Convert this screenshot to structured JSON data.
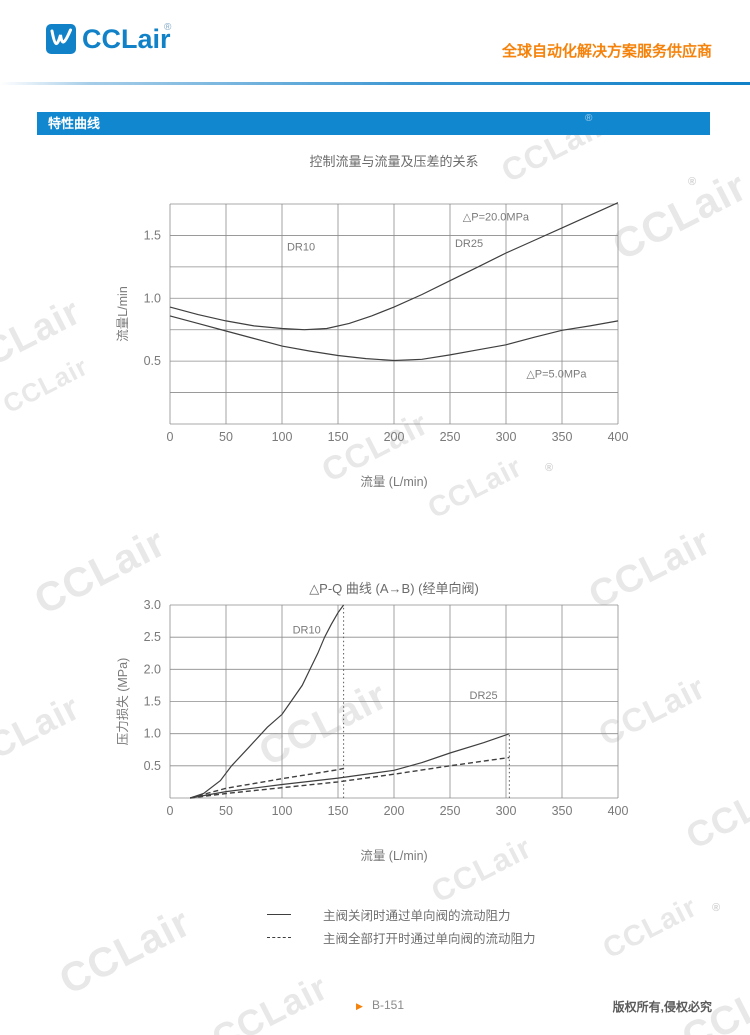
{
  "header": {
    "brand": "CCLair",
    "brand_reg": "®",
    "slogan": "全球自动化解决方案服务供应商"
  },
  "section": {
    "title": "特性曲线"
  },
  "watermark": {
    "text": "CCLair",
    "reg": "®"
  },
  "legend": [
    {
      "style": "solid",
      "label": "主阀关闭时通过单向阀的流动阻力"
    },
    {
      "style": "dashed",
      "label": "主阀全部打开时通过单向阀的流动阻力"
    }
  ],
  "footer": {
    "page": "B-151",
    "copyright": "版权所有,侵权必究"
  },
  "colors": {
    "brand_blue": "#1182c8",
    "banner_blue": "#1187cf",
    "orange": "#f5820b",
    "curve": "#3f3f3f",
    "grid": "#8c8c8c",
    "text_gray": "#7a7a7a",
    "watermark": "#d9d9d9"
  },
  "chart_data": [
    {
      "type": "line",
      "title": "控制流量与流量及压差的关系",
      "xlabel": "流量 (L/min)",
      "ylabel": "流量L/min",
      "xlim": [
        0,
        400
      ],
      "ylim": [
        0,
        1.75
      ],
      "grid": {
        "x_step": 50,
        "y_step": 0.25,
        "on": true
      },
      "xticks": [
        0,
        50,
        100,
        150,
        200,
        250,
        300,
        350,
        400
      ],
      "xtick_labels": [
        "0",
        "50",
        "100",
        "150",
        "200",
        "250",
        "300",
        "350",
        "400"
      ],
      "yticks": [
        0.5,
        1.0,
        1.5
      ],
      "ytick_labels": [
        "0.5",
        "1.0",
        "1.5"
      ],
      "vlines": [],
      "series": [
        {
          "name": "△P=20.0MPa",
          "style": "solid",
          "points": [
            [
              0,
              0.93
            ],
            [
              25,
              0.87
            ],
            [
              50,
              0.82
            ],
            [
              75,
              0.78
            ],
            [
              100,
              0.76
            ],
            [
              120,
              0.75
            ],
            [
              140,
              0.76
            ],
            [
              160,
              0.8
            ],
            [
              180,
              0.86
            ],
            [
              200,
              0.93
            ],
            [
              225,
              1.03
            ],
            [
              250,
              1.14
            ],
            [
              275,
              1.25
            ],
            [
              300,
              1.36
            ],
            [
              325,
              1.46
            ],
            [
              350,
              1.56
            ],
            [
              375,
              1.66
            ],
            [
              400,
              1.76
            ]
          ]
        },
        {
          "name": "△P=5.0MPa",
          "style": "solid",
          "points": [
            [
              0,
              0.86
            ],
            [
              25,
              0.8
            ],
            [
              50,
              0.74
            ],
            [
              75,
              0.68
            ],
            [
              100,
              0.62
            ],
            [
              125,
              0.58
            ],
            [
              150,
              0.545
            ],
            [
              175,
              0.52
            ],
            [
              200,
              0.505
            ],
            [
              225,
              0.515
            ],
            [
              250,
              0.55
            ],
            [
              275,
              0.59
            ],
            [
              300,
              0.63
            ],
            [
              325,
              0.69
            ],
            [
              350,
              0.745
            ],
            [
              375,
              0.78
            ],
            [
              400,
              0.82
            ]
          ]
        }
      ],
      "annotations": [
        {
          "text": "DR10",
          "x": 117,
          "y": 1.41
        },
        {
          "text": "DR25",
          "x": 267,
          "y": 1.44
        },
        {
          "text": "△P=20.0MPa",
          "x": 291,
          "y": 1.65
        },
        {
          "text": "△P=5.0MPa",
          "x": 345,
          "y": 0.4
        }
      ]
    },
    {
      "type": "line",
      "title": "△P-Q 曲线 (A→B) (经单向阀)",
      "xlabel": "流量 (L/min)",
      "ylabel": "压力损失 (MPa)",
      "xlim": [
        0,
        400
      ],
      "ylim": [
        0,
        3.0
      ],
      "grid": {
        "x_step": 50,
        "y_step": 0.5,
        "on": true
      },
      "xticks": [
        0,
        50,
        100,
        150,
        200,
        250,
        300,
        350,
        400
      ],
      "xtick_labels": [
        "0",
        "50",
        "100",
        "150",
        "200",
        "250",
        "300",
        "350",
        "400"
      ],
      "yticks": [
        0.5,
        1.0,
        1.5,
        2.0,
        2.5,
        3.0
      ],
      "ytick_labels": [
        "0.5",
        "1.0",
        "1.5",
        "2.0",
        "2.5",
        "3.0"
      ],
      "vlines": [
        {
          "x": 155,
          "y0": 0,
          "y1": 3.0
        },
        {
          "x": 303,
          "y0": 0,
          "y1": 1.0
        }
      ],
      "series": [
        {
          "name": "DR10 主阀关闭",
          "style": "solid",
          "points": [
            [
              18,
              0
            ],
            [
              30,
              0.07
            ],
            [
              45,
              0.27
            ],
            [
              55,
              0.5
            ],
            [
              70,
              0.78
            ],
            [
              87,
              1.1
            ],
            [
              100,
              1.3
            ],
            [
              108,
              1.5
            ],
            [
              118,
              1.75
            ],
            [
              125,
              2.0
            ],
            [
              132,
              2.25
            ],
            [
              138,
              2.5
            ],
            [
              144,
              2.7
            ],
            [
              150,
              2.88
            ],
            [
              155,
              3.0
            ]
          ]
        },
        {
          "name": "DR25 主阀关闭",
          "style": "solid",
          "points": [
            [
              18,
              0
            ],
            [
              50,
              0.1
            ],
            [
              100,
              0.21
            ],
            [
              150,
              0.31
            ],
            [
              200,
              0.43
            ],
            [
              225,
              0.55
            ],
            [
              250,
              0.7
            ],
            [
              280,
              0.86
            ],
            [
              303,
              1.0
            ]
          ]
        },
        {
          "name": "DR10 主阀全部打开",
          "style": "dashed",
          "points": [
            [
              18,
              0
            ],
            [
              50,
              0.15
            ],
            [
              100,
              0.3
            ],
            [
              150,
              0.44
            ],
            [
              155,
              0.46
            ]
          ]
        },
        {
          "name": "DR25 主阀全部打开",
          "style": "dashed",
          "points": [
            [
              18,
              0
            ],
            [
              50,
              0.07
            ],
            [
              100,
              0.16
            ],
            [
              150,
              0.25
            ],
            [
              200,
              0.37
            ],
            [
              250,
              0.5
            ],
            [
              303,
              0.63
            ]
          ]
        }
      ],
      "annotations": [
        {
          "text": "DR10",
          "x": 122,
          "y": 2.62
        },
        {
          "text": "DR25",
          "x": 280,
          "y": 1.6
        }
      ]
    }
  ]
}
